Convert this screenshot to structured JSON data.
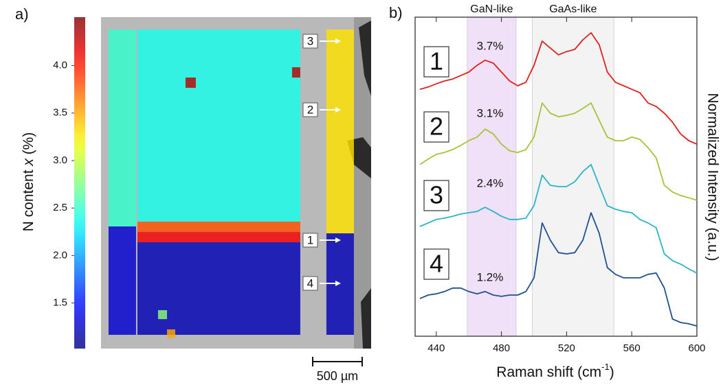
{
  "chart_data": [
    {
      "type": "map",
      "panel_label": "a)",
      "colorbar": {
        "label_parts": [
          "N content ",
          "x",
          " (%)"
        ],
        "colormap": "jet",
        "clim": [
          1.02,
          4.51
        ],
        "ticks": [
          1.5,
          {
            "value": 2.0,
            "label": "2.0"
          },
          2.5,
          {
            "value": 3.0,
            "label": "3.0"
          },
          3.5,
          {
            "value": 4.0,
            "label": "4.0"
          }
        ]
      },
      "xlim": [
        0,
        2730
      ],
      "ylim": [
        0,
        3354
      ],
      "scale_bar": {
        "value": 500,
        "label": "500 µm"
      },
      "regions": [
        {
          "x": [
            76,
            354
          ],
          "y": [
            125,
            2118
          ],
          "value": 2.5
        },
        {
          "x": [
            76,
            354
          ],
          "y": [
            2118,
            3215
          ],
          "value": 1.3
        },
        {
          "x": [
            368,
            2014
          ],
          "y": [
            125,
            2069
          ],
          "value": 2.4
        },
        {
          "x": [
            368,
            2014
          ],
          "y": [
            2069,
            2174
          ],
          "value": 3.8
        },
        {
          "x": [
            368,
            2014
          ],
          "y": [
            2174,
            2278
          ],
          "value": 4.1
        },
        {
          "x": [
            368,
            2014
          ],
          "y": [
            2278,
            3215
          ],
          "value": 1.2
        },
        {
          "x": [
            2278,
            2556
          ],
          "y": [
            125,
            2188
          ],
          "value": 3.3
        },
        {
          "x": [
            2278,
            2556
          ],
          "y": [
            2188,
            3215
          ],
          "value": 1.2
        },
        {
          "x": [
            854,
            958
          ],
          "y": [
            611,
            715
          ],
          "value": 4.3
        },
        {
          "x": [
            1931,
            2014
          ],
          "y": [
            507,
            611
          ],
          "value": 4.3
        },
        {
          "x": [
            576,
            667
          ],
          "y": [
            2965,
            3056
          ],
          "value": 2.8
        },
        {
          "x": [
            667,
            750
          ],
          "y": [
            3160,
            3243
          ],
          "value": 3.5
        }
      ],
      "markers": [
        "3",
        "2",
        "1",
        "4"
      ]
    },
    {
      "type": "line",
      "panel_label": "b)",
      "xlabel_parts": [
        "Raman shift (cm",
        "-1",
        ")"
      ],
      "ylabel": "Normalized Intensity (a.u.)",
      "xlim": [
        427,
        600
      ],
      "ylim": [
        0,
        10
      ],
      "xticks": [
        440,
        480,
        520,
        560,
        600
      ],
      "bands": [
        {
          "label": "GaN-like",
          "range": [
            459,
            489
          ],
          "color": "#f1e1f8"
        },
        {
          "label": "GaAs-like",
          "range": [
            499,
            549
          ],
          "color": "#f3f3f3"
        }
      ],
      "x": [
        430,
        435,
        440,
        445,
        450,
        455,
        460,
        465,
        470,
        475,
        480,
        485,
        490,
        495,
        500,
        505,
        510,
        515,
        520,
        525,
        530,
        535,
        540,
        545,
        550,
        555,
        560,
        565,
        570,
        575,
        580,
        585,
        590,
        595,
        600
      ],
      "series": [
        {
          "name": "1",
          "color": "#e0201b",
          "annotation": {
            "value": 3.7,
            "label": "3.7%"
          },
          "values": [
            7.74,
            7.81,
            7.91,
            8.0,
            8.06,
            8.17,
            8.28,
            8.49,
            8.65,
            8.56,
            8.28,
            8.0,
            7.85,
            7.96,
            8.49,
            9.25,
            9.03,
            8.82,
            8.92,
            8.99,
            9.29,
            9.51,
            9.14,
            8.28,
            7.96,
            7.85,
            7.74,
            7.63,
            7.31,
            7.2,
            6.99,
            6.71,
            6.34,
            6.13,
            6.02
          ]
        },
        {
          "name": "2",
          "color": "#a3c437",
          "annotation": {
            "value": 3.1,
            "label": "3.1%"
          },
          "values": [
            5.38,
            5.55,
            5.7,
            5.76,
            5.85,
            5.98,
            6.13,
            6.24,
            6.49,
            6.34,
            6.02,
            5.81,
            5.76,
            5.85,
            6.24,
            7.31,
            6.99,
            6.88,
            6.92,
            6.99,
            7.14,
            7.31,
            6.77,
            6.24,
            6.13,
            6.13,
            6.24,
            6.17,
            5.91,
            5.59,
            4.73,
            4.52,
            4.41,
            4.34,
            4.26
          ]
        },
        {
          "name": "3",
          "color": "#2bb3c9",
          "annotation": {
            "value": 2.4,
            "label": "2.4%"
          },
          "values": [
            3.44,
            3.55,
            3.66,
            3.7,
            3.76,
            3.83,
            3.87,
            3.91,
            4.04,
            3.91,
            3.76,
            3.66,
            3.66,
            3.7,
            4.09,
            5.05,
            4.73,
            4.69,
            4.69,
            4.84,
            5.16,
            5.38,
            4.73,
            4.09,
            3.98,
            3.91,
            3.87,
            3.66,
            3.55,
            3.4,
            2.58,
            2.37,
            2.26,
            2.11,
            1.98
          ]
        },
        {
          "name": "4",
          "color": "#1f4f8f",
          "annotation": {
            "value": 1.2,
            "label": "1.2%"
          },
          "values": [
            1.18,
            1.29,
            1.33,
            1.4,
            1.51,
            1.51,
            1.4,
            1.33,
            1.4,
            1.29,
            1.25,
            1.29,
            1.29,
            1.4,
            1.83,
            3.55,
            3.01,
            2.62,
            2.58,
            2.62,
            3.01,
            3.87,
            3.23,
            2.15,
            1.94,
            1.83,
            1.83,
            1.83,
            1.94,
            1.98,
            1.51,
            0.54,
            0.43,
            0.39,
            0.32
          ]
        }
      ]
    }
  ]
}
